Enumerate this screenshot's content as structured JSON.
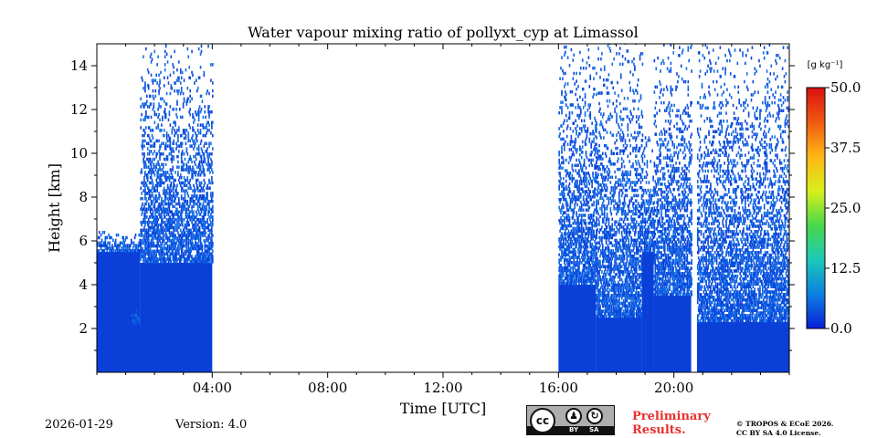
{
  "chart_data": {
    "type": "heatmap",
    "title": "Water vapour mixing ratio of pollyxt_cyp at Limassol",
    "xlabel": "Time [UTC]",
    "ylabel": "Height [km]",
    "xlim": [
      0,
      24
    ],
    "ylim": [
      0,
      15
    ],
    "x_ticks": [
      4,
      8,
      12,
      16,
      20
    ],
    "x_tick_labels": [
      "04:00",
      "08:00",
      "12:00",
      "16:00",
      "20:00"
    ],
    "y_ticks": [
      2,
      4,
      6,
      8,
      10,
      12,
      14
    ],
    "y_tick_labels": [
      "2",
      "4",
      "6",
      "8",
      "10",
      "12",
      "14"
    ],
    "colorbar": {
      "unit_label": "[g kg⁻¹]",
      "range": [
        0,
        50
      ],
      "ticks": [
        0,
        12.5,
        25,
        37.5,
        50
      ],
      "tick_labels": [
        "0.0",
        "12.5",
        "25.0",
        "37.5",
        "50.0"
      ],
      "colormap": [
        "#0a1fd8",
        "#0c7fe0",
        "#1cc9b8",
        "#49d84a",
        "#d9f01c",
        "#fdb615",
        "#f05a12",
        "#d81010"
      ]
    },
    "no_data_periods": [
      {
        "start": 4.0,
        "end": 16.0
      }
    ],
    "segments": [
      {
        "start": 0.0,
        "end": 1.5,
        "dense_top_km": 5.5,
        "sparse_top_km": 6.5,
        "typical_value": 4
      },
      {
        "start": 1.2,
        "end": 1.5,
        "dense_top_km": 2.2,
        "sparse_top_km": 3.0,
        "typical_value": 4
      },
      {
        "start": 1.5,
        "end": 4.0,
        "dense_top_km": 5.0,
        "sparse_top_km": 15.0,
        "typical_value": 4
      },
      {
        "start": 16.0,
        "end": 17.3,
        "dense_top_km": 4.0,
        "sparse_top_km": 15.0,
        "typical_value": 4
      },
      {
        "start": 17.3,
        "end": 18.9,
        "dense_top_km": 2.5,
        "sparse_top_km": 15.0,
        "typical_value": 4
      },
      {
        "start": 18.9,
        "end": 19.3,
        "dense_top_km": 5.5,
        "sparse_top_km": 11.0,
        "typical_value": 4
      },
      {
        "start": 19.3,
        "end": 20.6,
        "dense_top_km": 3.5,
        "sparse_top_km": 15.0,
        "typical_value": 4
      },
      {
        "start": 20.8,
        "end": 24.0,
        "dense_top_km": 2.3,
        "sparse_top_km": 15.0,
        "typical_value": 4
      }
    ]
  },
  "footer": {
    "date": "2026-01-29",
    "version": "Version: 4.0",
    "preliminary_line1": "Preliminary",
    "preliminary_line2": "Results.",
    "copyright_line1": "© TROPOS & ECoE 2026.",
    "copyright_line2": "CC BY SA 4.0 License.",
    "license_badge": {
      "cc": "cc",
      "by": "BY",
      "sa": "SA"
    }
  },
  "colors": {
    "accent_red": "#e8312e",
    "data_blue": "#0a3fd8"
  }
}
